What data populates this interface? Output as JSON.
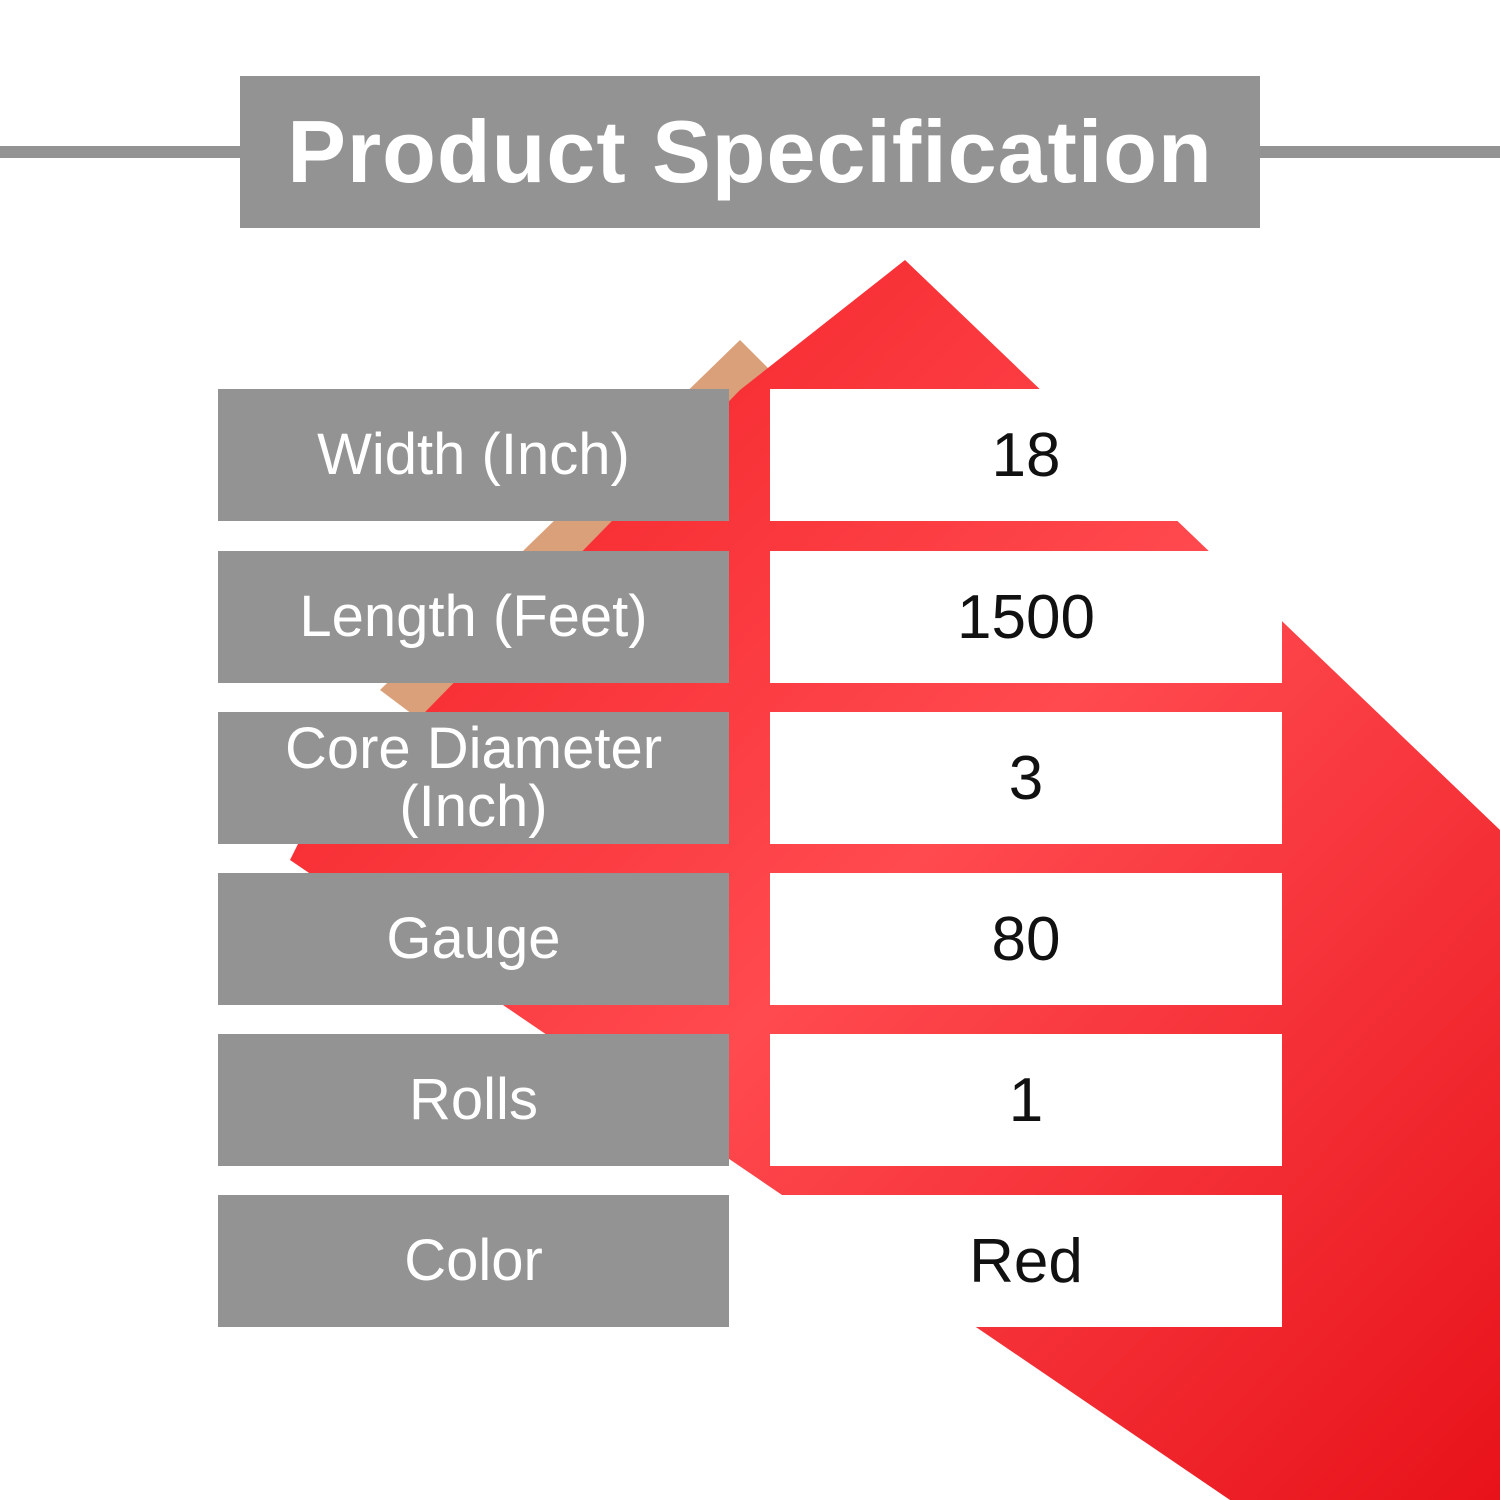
{
  "title": "Product Specification",
  "colors": {
    "panel_gray": "#939393",
    "product_red": "#e8161b",
    "value_bg": "#ffffff"
  },
  "specs": [
    {
      "label": "Width (Inch)",
      "value": "18"
    },
    {
      "label": "Length (Feet)",
      "value": "1500"
    },
    {
      "label": "Core Diameter (Inch)",
      "value": "3"
    },
    {
      "label": "Gauge",
      "value": "80"
    },
    {
      "label": "Rolls",
      "value": "1"
    },
    {
      "label": "Color",
      "value": "Red"
    }
  ]
}
